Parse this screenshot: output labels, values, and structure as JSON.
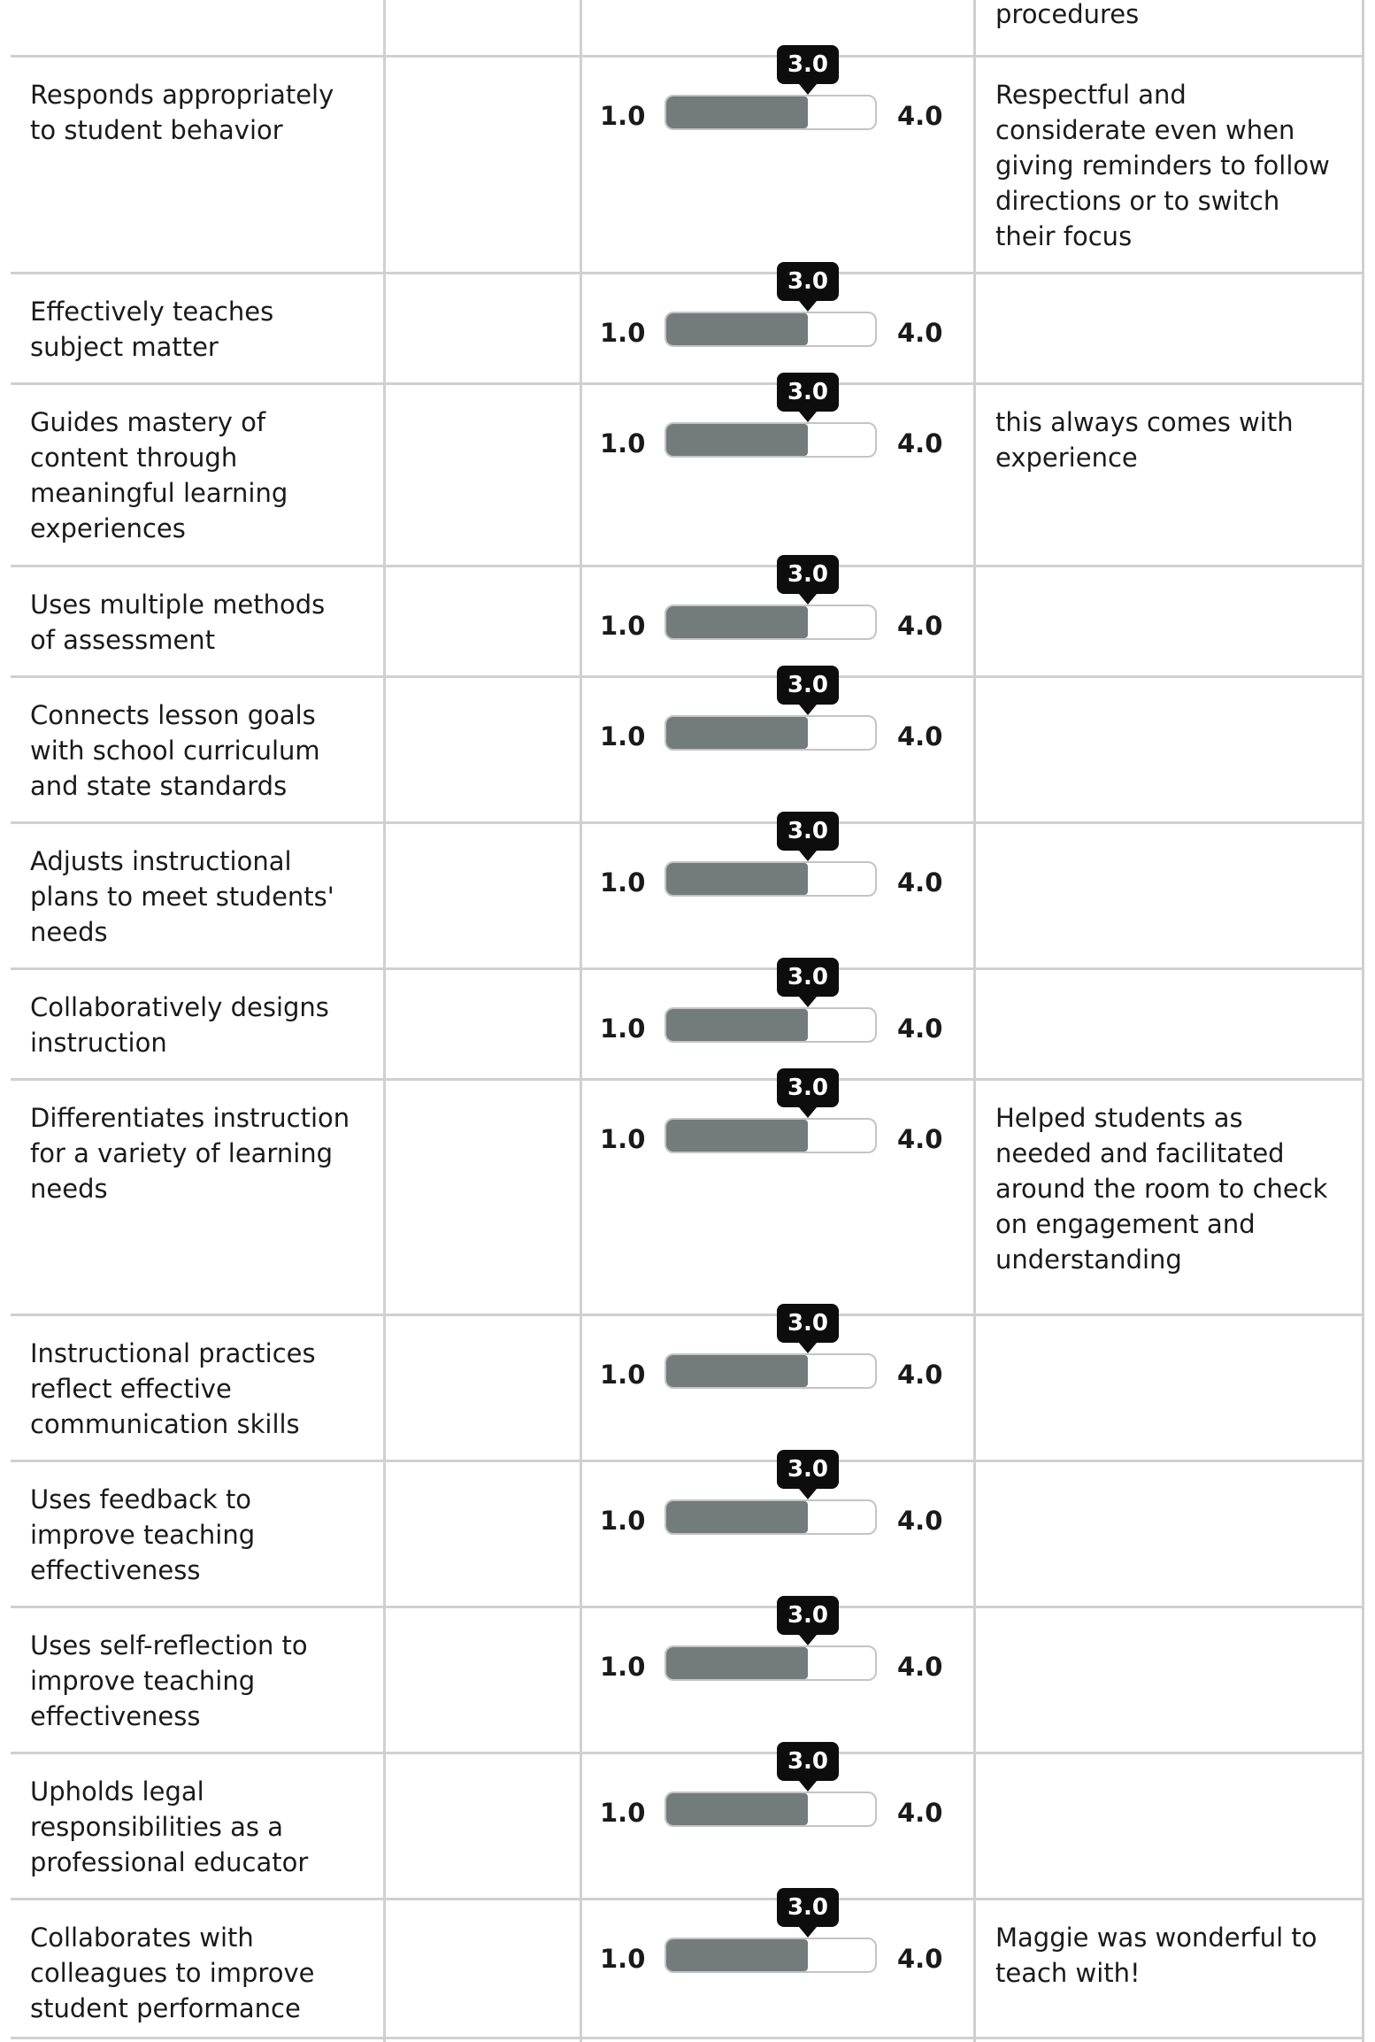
{
  "top_fragment": {
    "comment": "procedures"
  },
  "scale": {
    "min": "1.0",
    "max": "4.0",
    "min_value": 1.0,
    "max_value": 4.0
  },
  "colors": {
    "fill": "#737b7b",
    "tooltip": "#0d0d0d",
    "border": "#d0d0d0"
  },
  "rows": [
    {
      "criterion": "Responds appropriately\nto student behavior",
      "rating": 3.0,
      "rating_label": "3.0",
      "comment": "Respectful and\nconsiderate even when\ngiving reminders to follow\ndirections or to switch\ntheir focus"
    },
    {
      "criterion": "Effectively teaches\nsubject matter",
      "rating": 3.0,
      "rating_label": "3.0",
      "comment": ""
    },
    {
      "criterion": "Guides mastery of\ncontent through\nmeaningful learning\nexperiences",
      "rating": 3.0,
      "rating_label": "3.0",
      "comment": "this always comes with\nexperience"
    },
    {
      "criterion": "Uses multiple methods\nof assessment",
      "rating": 3.0,
      "rating_label": "3.0",
      "comment": ""
    },
    {
      "criterion": "Connects lesson goals\nwith school curriculum\nand state standards",
      "rating": 3.0,
      "rating_label": "3.0",
      "comment": ""
    },
    {
      "criterion": "Adjusts instructional\nplans to meet students'\nneeds",
      "rating": 3.0,
      "rating_label": "3.0",
      "comment": ""
    },
    {
      "criterion": "Collaboratively designs\ninstruction",
      "rating": 3.0,
      "rating_label": "3.0",
      "comment": ""
    },
    {
      "criterion": "Differentiates instruction\nfor a variety of learning\nneeds",
      "rating": 3.0,
      "rating_label": "3.0",
      "comment": "Helped students as\nneeded and facilitated\naround the room to check\non engagement and\nunderstanding"
    },
    {
      "criterion": "Instructional practices\nreflect effective\ncommunication skills",
      "rating": 3.0,
      "rating_label": "3.0",
      "comment": ""
    },
    {
      "criterion": "Uses feedback to\nimprove teaching\neffectiveness",
      "rating": 3.0,
      "rating_label": "3.0",
      "comment": ""
    },
    {
      "criterion": "Uses self-reflection to\nimprove teaching\neffectiveness",
      "rating": 3.0,
      "rating_label": "3.0",
      "comment": ""
    },
    {
      "criterion": "Upholds legal\nresponsibilities as a\nprofessional educator",
      "rating": 3.0,
      "rating_label": "3.0",
      "comment": ""
    },
    {
      "criterion": "Collaborates with\ncolleagues to improve\nstudent performance",
      "rating": 3.0,
      "rating_label": "3.0",
      "comment": "Maggie was wonderful to\nteach with!"
    }
  ]
}
